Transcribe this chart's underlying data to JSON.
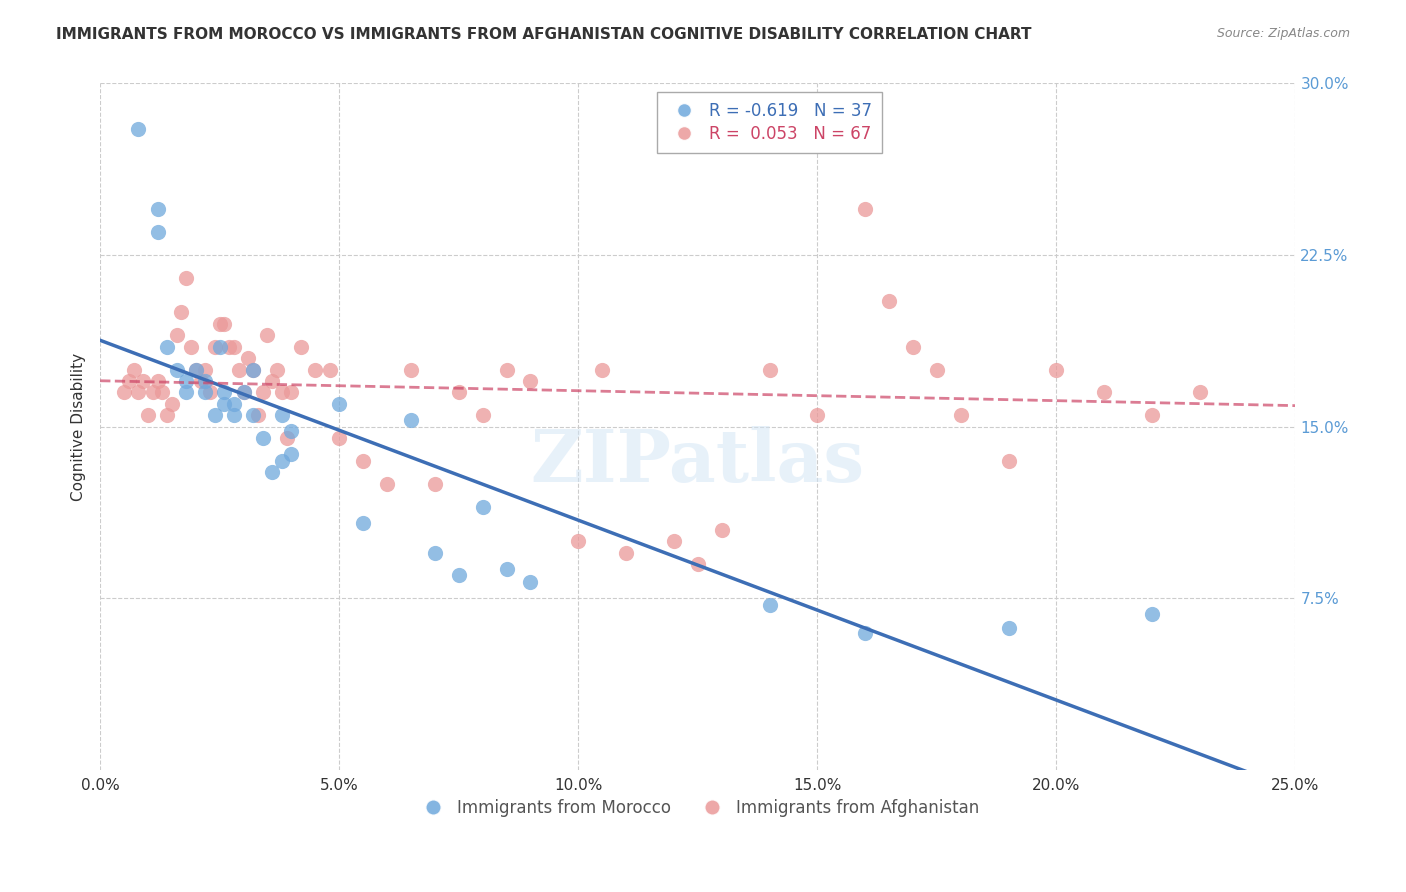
{
  "title": "IMMIGRANTS FROM MOROCCO VS IMMIGRANTS FROM AFGHANISTAN COGNITIVE DISABILITY CORRELATION CHART",
  "source": "Source: ZipAtlas.com",
  "xlabel_bottom": "",
  "ylabel": "Cognitive Disability",
  "x_label_bottom_left": "0.0%",
  "x_label_bottom_right": "25.0%",
  "y_ticks_right": [
    "7.5%",
    "15.0%",
    "22.5%",
    "30.0%"
  ],
  "y_ticks_right_vals": [
    0.075,
    0.15,
    0.225,
    0.3
  ],
  "xlim": [
    0.0,
    0.25
  ],
  "ylim": [
    0.0,
    0.3
  ],
  "legend_blue_r": "R = -0.619",
  "legend_blue_n": "N = 37",
  "legend_pink_r": "R =  0.053",
  "legend_pink_n": "N = 67",
  "blue_color": "#6fa8dc",
  "pink_color": "#ea9999",
  "trendline_blue_color": "#3d6eb5",
  "trendline_pink_color": "#cc4466",
  "watermark": "ZIPatlas",
  "legend_label_blue": "Immigrants from Morocco",
  "legend_label_pink": "Immigrants from Afghanistan",
  "blue_scatter_x": [
    0.008,
    0.012,
    0.012,
    0.014,
    0.016,
    0.018,
    0.018,
    0.02,
    0.022,
    0.022,
    0.024,
    0.025,
    0.026,
    0.026,
    0.028,
    0.028,
    0.03,
    0.032,
    0.032,
    0.034,
    0.036,
    0.038,
    0.038,
    0.04,
    0.04,
    0.05,
    0.055,
    0.065,
    0.07,
    0.075,
    0.08,
    0.085,
    0.09,
    0.14,
    0.16,
    0.19,
    0.22
  ],
  "blue_scatter_y": [
    0.28,
    0.235,
    0.245,
    0.185,
    0.175,
    0.165,
    0.17,
    0.175,
    0.165,
    0.17,
    0.155,
    0.185,
    0.165,
    0.16,
    0.155,
    0.16,
    0.165,
    0.175,
    0.155,
    0.145,
    0.13,
    0.135,
    0.155,
    0.148,
    0.138,
    0.16,
    0.108,
    0.153,
    0.095,
    0.085,
    0.115,
    0.088,
    0.082,
    0.072,
    0.06,
    0.062,
    0.068
  ],
  "pink_scatter_x": [
    0.005,
    0.006,
    0.007,
    0.008,
    0.009,
    0.01,
    0.011,
    0.012,
    0.013,
    0.014,
    0.015,
    0.016,
    0.017,
    0.018,
    0.019,
    0.02,
    0.021,
    0.022,
    0.023,
    0.024,
    0.025,
    0.026,
    0.027,
    0.028,
    0.029,
    0.03,
    0.031,
    0.032,
    0.033,
    0.034,
    0.035,
    0.036,
    0.037,
    0.038,
    0.039,
    0.04,
    0.042,
    0.045,
    0.048,
    0.05,
    0.055,
    0.06,
    0.065,
    0.07,
    0.075,
    0.08,
    0.085,
    0.09,
    0.1,
    0.105,
    0.11,
    0.12,
    0.125,
    0.13,
    0.14,
    0.15,
    0.155,
    0.16,
    0.165,
    0.17,
    0.175,
    0.18,
    0.19,
    0.2,
    0.21,
    0.22,
    0.23
  ],
  "pink_scatter_y": [
    0.165,
    0.17,
    0.175,
    0.165,
    0.17,
    0.155,
    0.165,
    0.17,
    0.165,
    0.155,
    0.16,
    0.19,
    0.2,
    0.215,
    0.185,
    0.175,
    0.17,
    0.175,
    0.165,
    0.185,
    0.195,
    0.195,
    0.185,
    0.185,
    0.175,
    0.165,
    0.18,
    0.175,
    0.155,
    0.165,
    0.19,
    0.17,
    0.175,
    0.165,
    0.145,
    0.165,
    0.185,
    0.175,
    0.175,
    0.145,
    0.135,
    0.125,
    0.175,
    0.125,
    0.165,
    0.155,
    0.175,
    0.17,
    0.1,
    0.175,
    0.095,
    0.1,
    0.09,
    0.105,
    0.175,
    0.155,
    0.275,
    0.245,
    0.205,
    0.185,
    0.175,
    0.155,
    0.135,
    0.175,
    0.165,
    0.155,
    0.165
  ]
}
